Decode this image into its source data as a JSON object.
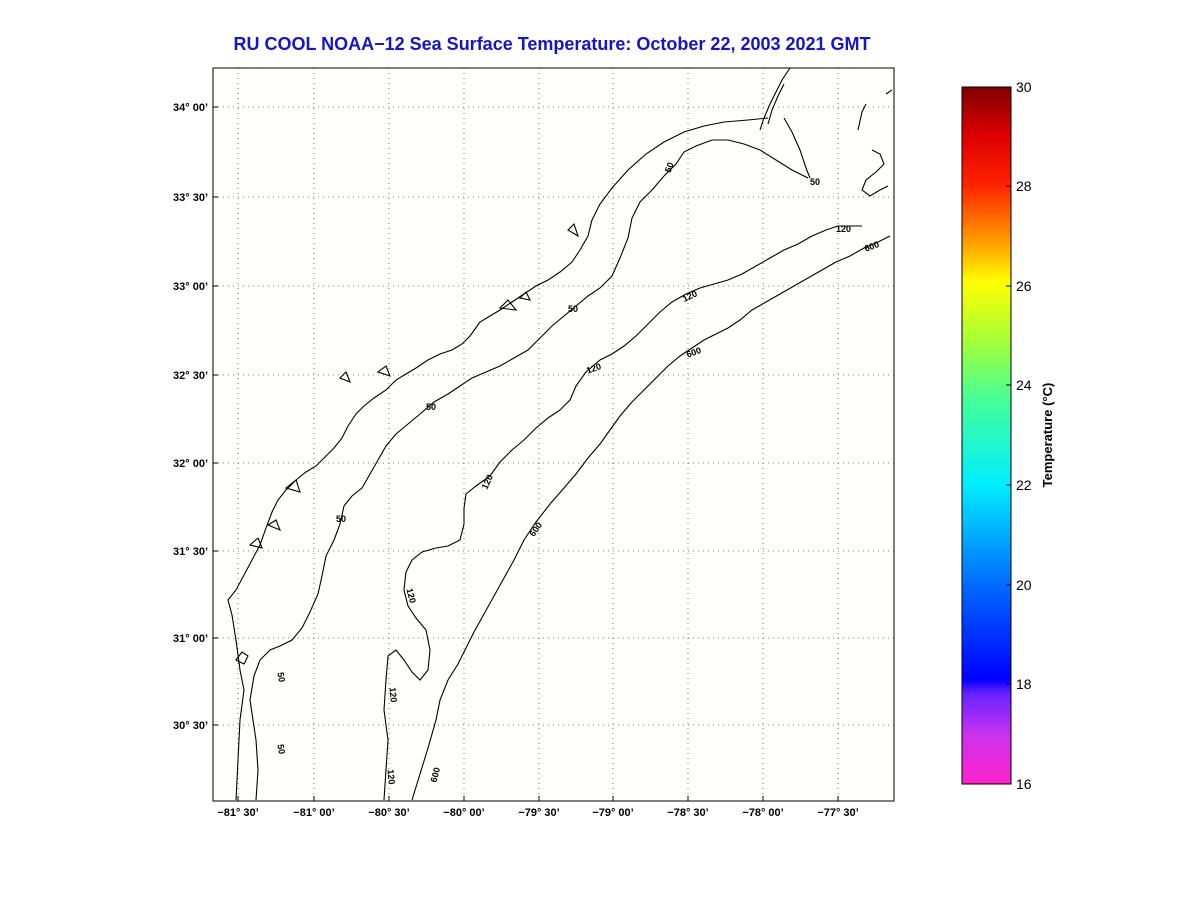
{
  "title": "RU COOL  NOAA−12  Sea Surface Temperature:  October 22, 2003 2021 GMT",
  "map": {
    "lon_ticks": [
      "−81° 30’",
      "−81° 00’",
      "−80° 30’",
      "−80° 00’",
      "−79° 30’",
      "−79° 00’",
      "−78° 30’",
      "−78° 00’",
      "−77° 30’"
    ],
    "lat_ticks": [
      "34° 00’",
      "33° 30’",
      "33° 00’",
      "32° 30’",
      "32° 00’",
      "31° 30’",
      "31° 00’",
      "30° 30’"
    ],
    "contour_labels": [
      "50",
      "50",
      "50",
      "50",
      "50",
      "50",
      "50",
      "120",
      "120",
      "120",
      "120",
      "120",
      "120",
      "120",
      "600",
      "600",
      "600",
      "600"
    ],
    "grid": true
  },
  "colorbar": {
    "title": "Temperature (°C)",
    "ticks": [
      "30",
      "28",
      "26",
      "24",
      "22",
      "20",
      "18",
      "16"
    ],
    "min": 16,
    "max": 30
  }
}
